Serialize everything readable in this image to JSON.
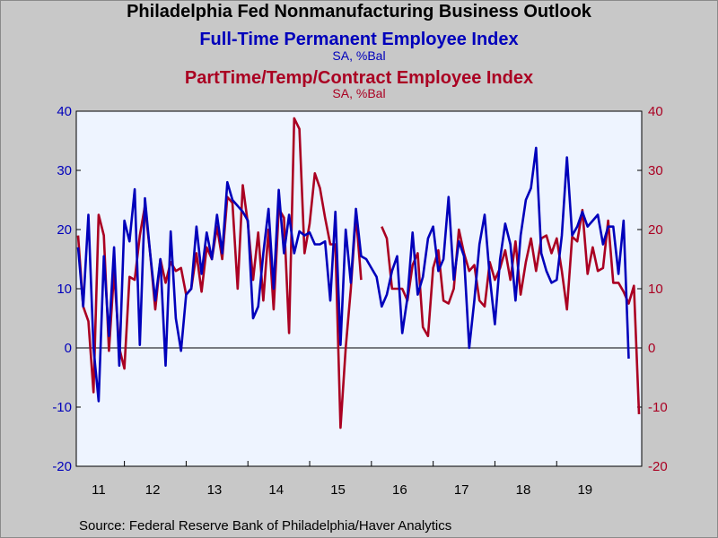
{
  "header": {
    "title": "Philadelphia Fed Nonmanufacturing Business Outlook",
    "series1_title": "Full-Time Permanent Employee Index",
    "series1_units": "SA, %Bal",
    "series2_title": "PartTime/Temp/Contract Employee Index",
    "series2_units": "SA, %Bal"
  },
  "footer": {
    "source": "Source:  Federal Reserve Bank of Philadelphia/Haver Analytics"
  },
  "colors": {
    "series1": "#0000bb",
    "series2": "#aa0022",
    "plot_bg": "#eef4ff",
    "outer_bg": "#c8c8c8"
  },
  "chart_data": {
    "type": "line",
    "title": "Philadelphia Fed Nonmanufacturing Business Outlook",
    "x_start": "2011-04",
    "frequency": "monthly",
    "x_tick_labels": [
      "11",
      "12",
      "13",
      "14",
      "15",
      "16",
      "17",
      "18",
      "19"
    ],
    "ylim": [
      -20,
      40
    ],
    "y_ticks": [
      -20,
      -10,
      0,
      10,
      20,
      30,
      40
    ],
    "y_tick_labels_left": [
      "-20",
      "-10",
      "0",
      "10",
      "20",
      "30",
      "40"
    ],
    "y_tick_labels_right": [
      "-20",
      "-10",
      "0",
      "10",
      "20",
      "30",
      "40"
    ],
    "zero_line": true,
    "grid": false,
    "series": [
      {
        "name": "Full-Time Permanent Employee Index",
        "units": "SA, %Bal",
        "color": "#0000bb",
        "values": [
          17,
          7,
          22.5,
          0,
          -9,
          15.5,
          2,
          17,
          -3,
          21.5,
          18,
          26.8,
          0.5,
          25.3,
          16,
          8,
          15,
          -3,
          19.7,
          5,
          -0.5,
          9,
          10,
          20.5,
          12.5,
          19.5,
          15,
          22.5,
          16,
          28,
          25,
          24,
          23,
          21.5,
          5,
          7,
          16,
          23.5,
          10,
          26.7,
          16,
          22.5,
          16,
          19.7,
          19,
          19.5,
          17.5,
          17.5,
          18,
          8,
          23,
          0.5,
          20,
          11,
          23.5,
          15.5,
          15,
          13.5,
          12,
          7,
          9,
          13,
          15.5,
          2.5,
          8.5,
          19.5,
          9,
          12,
          18.5,
          20.5,
          13,
          15,
          25.5,
          11.5,
          18,
          15.5,
          0,
          8,
          17.5,
          22.5,
          12,
          4,
          15,
          21,
          17.5,
          8,
          19,
          25,
          27,
          33.8,
          16,
          13,
          11,
          11.5,
          19,
          32.2,
          19,
          20.5,
          23,
          20.5,
          21.5,
          22.5,
          17.5,
          20.5,
          20.5,
          12.5,
          21.5,
          -1.8
        ]
      },
      {
        "name": "PartTime/Temp/Contract Employee Index",
        "units": "SA, %Bal",
        "color": "#aa0022",
        "values": [
          19,
          7,
          4.5,
          -7.5,
          22.5,
          19,
          -0.5,
          13,
          0,
          -3.5,
          12,
          11.5,
          19,
          24,
          16,
          6.5,
          15,
          11,
          14.5,
          13,
          13.5,
          9,
          10,
          16,
          9.5,
          17,
          15,
          20.5,
          15,
          25.5,
          24.5,
          10,
          27.5,
          21,
          11.5,
          19.5,
          8,
          20,
          6.5,
          23.5,
          22,
          2.5,
          38.8,
          37,
          16,
          21,
          29.5,
          27,
          22,
          17.5,
          17.5,
          -13.5,
          0,
          10,
          22.5,
          11.5,
          null,
          null,
          null,
          20.5,
          18.5,
          10,
          10,
          10,
          8,
          14,
          16,
          3.5,
          2,
          13.5,
          16.5,
          8,
          7.5,
          10,
          20,
          16,
          13,
          14,
          8,
          7,
          14.5,
          11.5,
          13.5,
          16.5,
          11.5,
          18,
          9,
          14.5,
          18.5,
          13,
          18.5,
          19,
          16,
          18.5,
          13,
          6.5,
          18.8,
          18,
          23.3,
          12.5,
          17,
          13,
          13.5,
          21.5,
          11,
          11,
          9.5,
          7.5,
          10.5,
          -11.2
        ]
      }
    ]
  }
}
